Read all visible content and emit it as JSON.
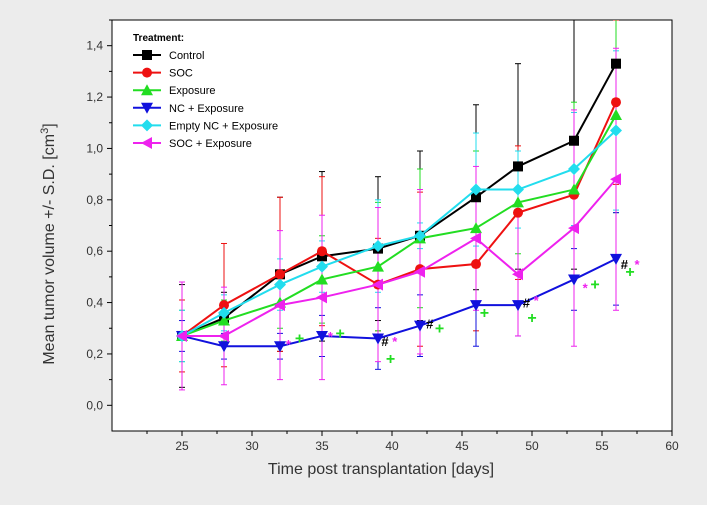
{
  "chart_data": {
    "type": "line",
    "xlabel": "Time post transplantation [days]",
    "ylabel": "Mean tumor volume +/- S.D. [cm",
    "ylabel_sup": "3",
    "ylabel_end": "]",
    "xlim": [
      20,
      60
    ],
    "ylim": [
      -0.1,
      1.5
    ],
    "xticks": [
      25,
      30,
      35,
      40,
      45,
      50,
      55,
      60
    ],
    "yticks": [
      0.0,
      0.2,
      0.4,
      0.6,
      0.8,
      1.0,
      1.2,
      1.4
    ],
    "ytick_labels": [
      "0,0",
      "0,2",
      "0,4",
      "0,6",
      "0,8",
      "1,0",
      "1,2",
      "1,4"
    ],
    "legend_title": "Treatment:",
    "legend_position": "top-left",
    "series": [
      {
        "name": "Control",
        "color": "#000000",
        "marker": "square",
        "x": [
          25,
          28,
          32,
          35,
          39,
          42,
          46,
          49,
          53,
          56
        ],
        "y": [
          0.27,
          0.34,
          0.51,
          0.58,
          0.61,
          0.66,
          0.81,
          0.93,
          1.03,
          1.33
        ],
        "err": [
          0.2,
          0.1,
          0.3,
          0.33,
          0.28,
          0.33,
          0.36,
          0.4,
          0.5,
          0.45
        ]
      },
      {
        "name": "SOC",
        "color": "#ee1111",
        "marker": "circle",
        "x": [
          25,
          28,
          32,
          35,
          39,
          42,
          46,
          49,
          53,
          56
        ],
        "y": [
          0.27,
          0.39,
          0.51,
          0.6,
          0.47,
          0.53,
          0.55,
          0.75,
          0.82,
          1.18
        ],
        "err": [
          0.14,
          0.24,
          0.3,
          0.29,
          0.18,
          0.3,
          0.26,
          0.26,
          0.32,
          0.32
        ]
      },
      {
        "name": "Exposure",
        "color": "#22dd22",
        "marker": "triangle-up",
        "x": [
          25,
          28,
          32,
          35,
          39,
          42,
          46,
          49,
          53,
          56
        ],
        "y": [
          0.27,
          0.33,
          0.4,
          0.49,
          0.54,
          0.65,
          0.69,
          0.79,
          0.84,
          1.13
        ],
        "err": [
          0.1,
          0.08,
          0.1,
          0.17,
          0.25,
          0.27,
          0.3,
          0.2,
          0.34,
          0.38
        ]
      },
      {
        "name": "NC + Exposure",
        "color": "#1111dd",
        "marker": "triangle-down",
        "x": [
          25,
          28,
          32,
          35,
          39,
          42,
          46,
          49,
          53,
          56
        ],
        "y": [
          0.27,
          0.23,
          0.23,
          0.27,
          0.26,
          0.31,
          0.39,
          0.39,
          0.49,
          0.57
        ],
        "err": [
          0.06,
          0.05,
          0.05,
          0.08,
          0.12,
          0.12,
          0.16,
          0.12,
          0.12,
          0.18
        ]
      },
      {
        "name": "Empty NC + Exposure",
        "color": "#22ddee",
        "marker": "diamond",
        "x": [
          25,
          28,
          32,
          35,
          39,
          42,
          46,
          49,
          53,
          56
        ],
        "y": [
          0.27,
          0.36,
          0.47,
          0.54,
          0.62,
          0.66,
          0.84,
          0.84,
          0.92,
          1.07
        ],
        "err": [
          0.1,
          0.07,
          0.1,
          0.1,
          0.18,
          0.05,
          0.22,
          0.15,
          0.22,
          0.31
        ]
      },
      {
        "name": "SOC + Exposure",
        "color": "#ee22ee",
        "marker": "triangle-left",
        "x": [
          25,
          28,
          32,
          35,
          39,
          42,
          46,
          49,
          53,
          56
        ],
        "y": [
          0.27,
          0.27,
          0.39,
          0.42,
          0.47,
          0.52,
          0.65,
          0.51,
          0.69,
          0.88
        ],
        "err": [
          0.21,
          0.19,
          0.29,
          0.32,
          0.3,
          0.32,
          0.28,
          0.24,
          0.46,
          0.51
        ]
      }
    ],
    "annotations": [
      {
        "text": "*",
        "color": "#ee22ee",
        "x": 32.6,
        "y": 0.22
      },
      {
        "text": "+",
        "color": "#22dd22",
        "x": 33.4,
        "y": 0.24
      },
      {
        "text": "*",
        "color": "#ee22ee",
        "x": 35.6,
        "y": 0.25
      },
      {
        "text": "+",
        "color": "#22dd22",
        "x": 36.3,
        "y": 0.26
      },
      {
        "text": "#",
        "color": "#000000",
        "x": 39.5,
        "y": 0.23
      },
      {
        "text": "*",
        "color": "#ee22ee",
        "x": 40.2,
        "y": 0.23
      },
      {
        "text": "+",
        "color": "#22dd22",
        "x": 39.9,
        "y": 0.16
      },
      {
        "text": "#",
        "color": "#000000",
        "x": 42.7,
        "y": 0.3
      },
      {
        "text": "+",
        "color": "#22dd22",
        "x": 43.4,
        "y": 0.28
      },
      {
        "text": "+",
        "color": "#22dd22",
        "x": 46.6,
        "y": 0.34
      },
      {
        "text": "#",
        "color": "#000000",
        "x": 49.6,
        "y": 0.38
      },
      {
        "text": "*",
        "color": "#ee22ee",
        "x": 50.3,
        "y": 0.39
      },
      {
        "text": "+",
        "color": "#22dd22",
        "x": 50.0,
        "y": 0.32
      },
      {
        "text": "*",
        "color": "#ee22ee",
        "x": 53.8,
        "y": 0.44
      },
      {
        "text": "+",
        "color": "#22dd22",
        "x": 54.5,
        "y": 0.45
      },
      {
        "text": "#",
        "color": "#000000",
        "x": 56.6,
        "y": 0.53
      },
      {
        "text": "*",
        "color": "#ee22ee",
        "x": 57.5,
        "y": 0.53
      },
      {
        "text": "+",
        "color": "#22dd22",
        "x": 57.0,
        "y": 0.5
      }
    ]
  }
}
